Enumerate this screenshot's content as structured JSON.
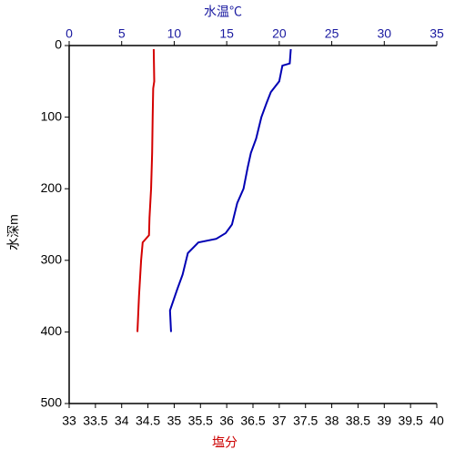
{
  "chart_data": {
    "type": "profile",
    "x_label": "塩分",
    "x2_label": "水温℃",
    "y_label": "水深m",
    "xlim": [
      33,
      40
    ],
    "xticks": [
      33,
      33.5,
      34,
      34.5,
      35,
      35.5,
      36,
      36.5,
      37,
      37.5,
      38,
      38.5,
      39,
      39.5,
      40
    ],
    "x2lim": [
      0,
      35
    ],
    "x2ticks": [
      0,
      5,
      10,
      15,
      20,
      25,
      30,
      35
    ],
    "ylim": [
      0,
      500
    ],
    "yticks": [
      0,
      100,
      200,
      300,
      400,
      500
    ],
    "y_inverted": true,
    "x_label_color": "#cc0000",
    "x2_label_color": "#1a1aa0",
    "series": [
      {
        "color": "#0000b4",
        "axis": "x2",
        "x": [
          21.1,
          21.0,
          20.3,
          20.0,
          19.2,
          18.8,
          18.3,
          17.8,
          17.3,
          17.0,
          16.6,
          16.0,
          15.5,
          14.9,
          14.0,
          12.3,
          11.3,
          10.8,
          10.3,
          9.6,
          9.7
        ],
        "y": [
          5,
          25,
          28,
          50,
          65,
          80,
          100,
          130,
          150,
          170,
          200,
          220,
          250,
          262,
          270,
          275,
          290,
          320,
          340,
          370,
          400
        ]
      },
      {
        "color": "#d40000",
        "axis": "x",
        "x": [
          34.61,
          34.62,
          34.6,
          34.59,
          34.58,
          34.56,
          34.53,
          34.52,
          34.4,
          34.37,
          34.33,
          34.3
        ],
        "y": [
          5,
          50,
          60,
          100,
          150,
          200,
          240,
          265,
          275,
          300,
          350,
          400
        ]
      }
    ]
  }
}
